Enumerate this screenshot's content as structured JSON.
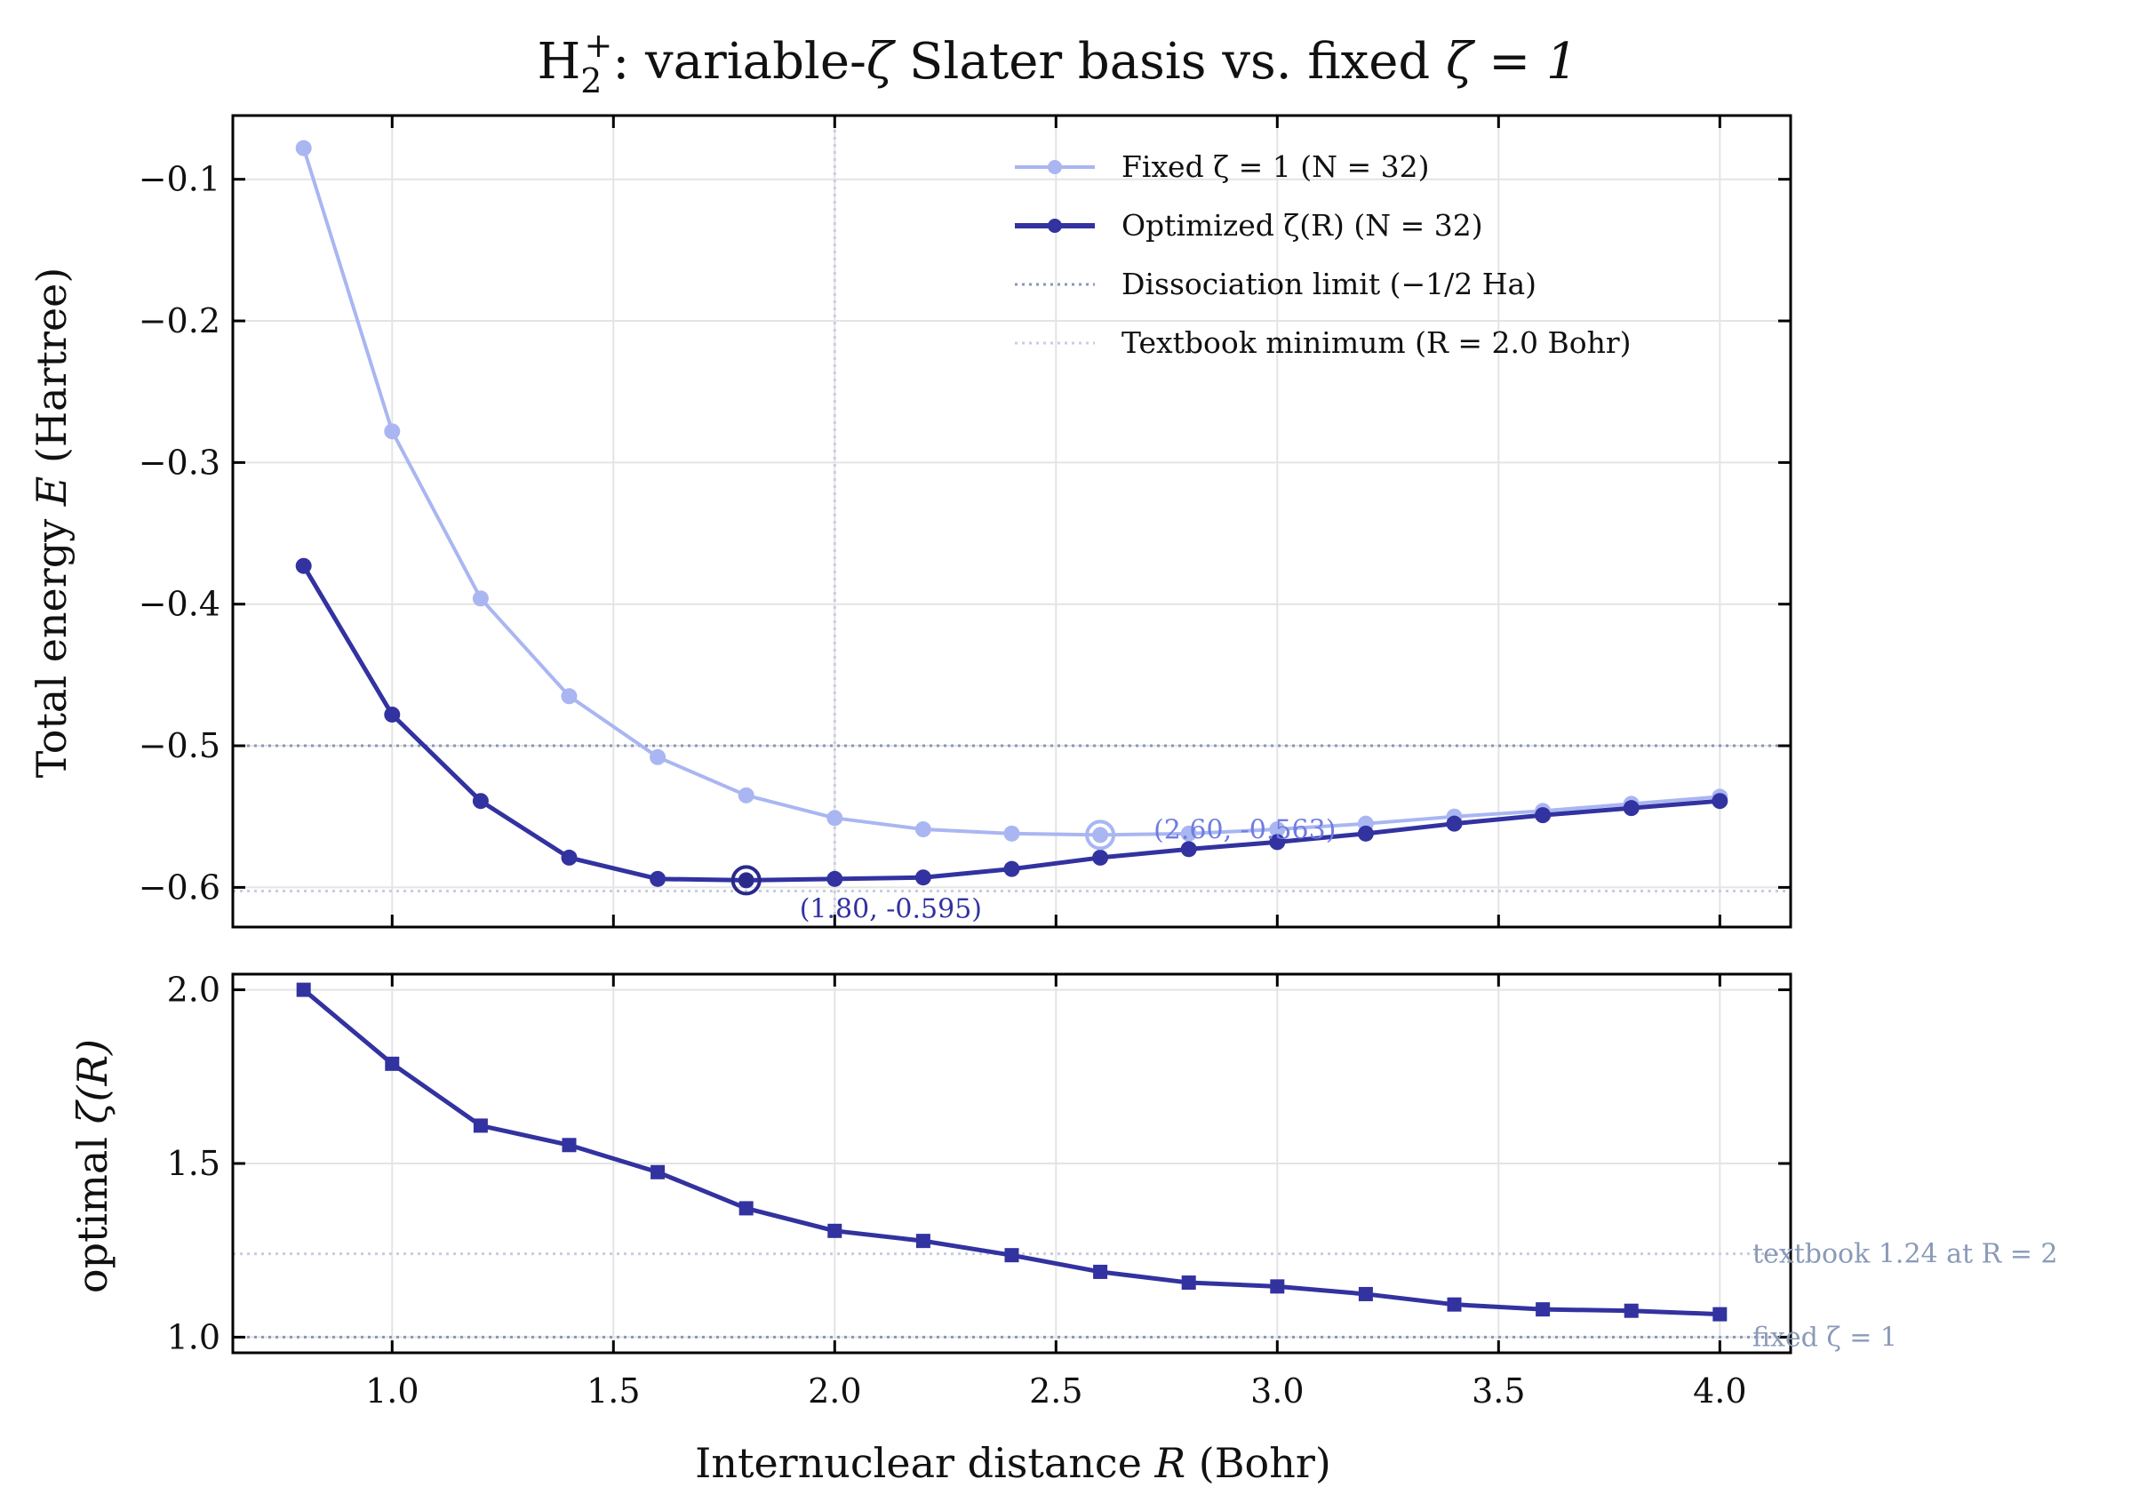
{
  "chart_data": [
    {
      "type": "line",
      "title_main": "H",
      "title_sub": "2",
      "title_sup": "+",
      "title_rest": ": variable-",
      "title_zeta": "ζ",
      "title_tail": " Slater basis vs. fixed ",
      "title_end": "ζ = 1",
      "ylabel_pre": "Total energy ",
      "ylabel_var": "E",
      "ylabel_post": " (Hartree)",
      "xlim": [
        0.64,
        4.16
      ],
      "ylim": [
        -0.628,
        -0.055
      ],
      "yticks": [
        -0.1,
        -0.2,
        -0.3,
        -0.4,
        -0.5,
        -0.6
      ],
      "ytick_labels": [
        "−0.1",
        "−0.2",
        "−0.3",
        "−0.4",
        "−0.5",
        "−0.6"
      ],
      "grid": true,
      "legend_position": "top-right",
      "x": [
        0.8,
        1.0,
        1.2,
        1.4,
        1.6,
        1.8,
        2.0,
        2.2,
        2.4,
        2.6,
        2.8,
        3.0,
        3.2,
        3.4,
        3.6,
        3.8,
        4.0
      ],
      "series": [
        {
          "name": "Fixed ζ = 1 (N = 32)",
          "color": "#a9b6f2",
          "values": [
            -0.078,
            -0.278,
            -0.396,
            -0.465,
            -0.508,
            -0.535,
            -0.551,
            -0.559,
            -0.562,
            -0.563,
            -0.562,
            -0.559,
            -0.555,
            -0.55,
            -0.546,
            -0.541,
            -0.536
          ]
        },
        {
          "name": "Optimized ζ(R) (N = 32)",
          "color": "#3232a0",
          "values": [
            -0.373,
            -0.478,
            -0.539,
            -0.579,
            -0.594,
            -0.595,
            -0.594,
            -0.593,
            -0.587,
            -0.579,
            -0.573,
            -0.568,
            -0.562,
            -0.555,
            -0.549,
            -0.544,
            -0.539
          ]
        }
      ],
      "reference_lines": [
        {
          "name": "Dissociation limit (−1/2 Ha)",
          "orientation": "horizontal",
          "value": -0.5,
          "color": "#8a96b8"
        },
        {
          "name": "Textbook minimum (R = 2.0 Bohr)",
          "orientation": "vertical",
          "value": 2.0,
          "color": "#c8cde0"
        },
        {
          "orientation": "horizontal",
          "value": -0.6026,
          "color": "#c8cde0"
        }
      ],
      "legend": [
        "Fixed ζ = 1 (N = 32)",
        "Optimized ζ(R) (N = 32)",
        "Dissociation limit (−1/2 Ha)",
        "Textbook minimum (R = 2.0 Bohr)"
      ],
      "minima": [
        {
          "series": "Optimized ζ(R) (N = 32)",
          "x": 1.8,
          "y": -0.595,
          "label": "(1.80, -0.595)",
          "color": "#3232a0"
        },
        {
          "series": "Fixed ζ = 1 (N = 32)",
          "x": 2.6,
          "y": -0.563,
          "label": "(2.60, -0.563)",
          "color": "#6f7ce0"
        }
      ]
    },
    {
      "type": "line",
      "xlabel_pre": "Internuclear distance ",
      "xlabel_var": "R",
      "xlabel_post": " (Bohr)",
      "ylabel_pre": "optimal ",
      "ylabel_var": "ζ(R)",
      "xlim": [
        0.64,
        4.16
      ],
      "ylim": [
        0.955,
        2.045
      ],
      "xticks": [
        1.0,
        1.5,
        2.0,
        2.5,
        3.0,
        3.5,
        4.0
      ],
      "xtick_labels": [
        "1.0",
        "1.5",
        "2.0",
        "2.5",
        "3.0",
        "3.5",
        "4.0"
      ],
      "yticks": [
        1.0,
        1.5,
        2.0
      ],
      "ytick_labels": [
        "1.0",
        "1.5",
        "2.0"
      ],
      "grid": true,
      "x": [
        0.8,
        1.0,
        1.2,
        1.4,
        1.6,
        1.8,
        2.0,
        2.2,
        2.4,
        2.6,
        2.8,
        3.0,
        3.2,
        3.4,
        3.6,
        3.8,
        4.0
      ],
      "series": [
        {
          "name": "optimal ζ(R)",
          "color": "#3232a0",
          "marker": "square",
          "values": [
            2.0,
            1.787,
            1.609,
            1.553,
            1.475,
            1.371,
            1.306,
            1.277,
            1.236,
            1.188,
            1.157,
            1.146,
            1.124,
            1.094,
            1.08,
            1.076,
            1.066
          ]
        }
      ],
      "reference_lines": [
        {
          "orientation": "horizontal",
          "value": 1.24,
          "color": "#c8cde0",
          "label": "textbook 1.24 at R = 2"
        },
        {
          "orientation": "horizontal",
          "value": 1.0,
          "color": "#8a96b8",
          "label": "fixed ζ = 1"
        }
      ]
    }
  ]
}
